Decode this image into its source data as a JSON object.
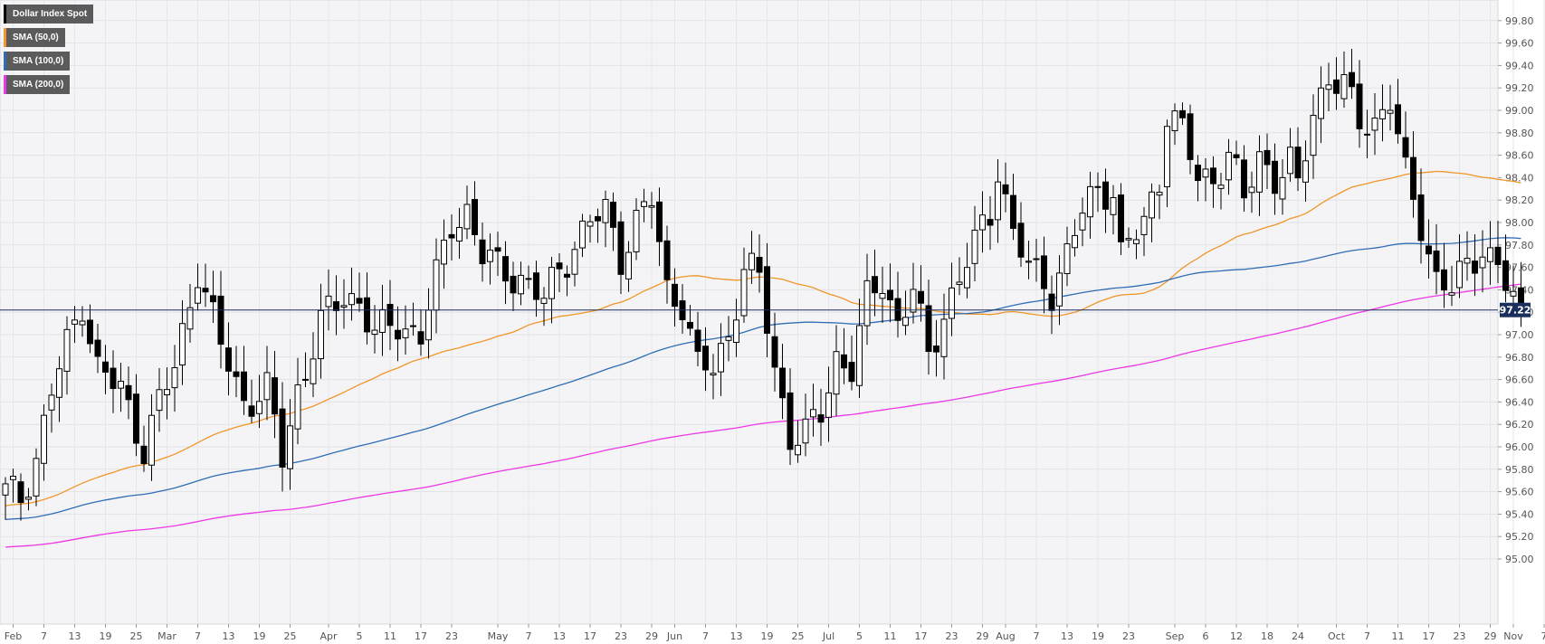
{
  "legend": [
    {
      "label": "Dollar Index Spot",
      "color": "#000000"
    },
    {
      "label": "SMA (50,0)",
      "color": "#f0962a"
    },
    {
      "label": "SMA (100,0)",
      "color": "#2f6db5"
    },
    {
      "label": "SMA (200,0)",
      "color": "#ec38e6"
    }
  ],
  "chart_data": {
    "type": "candlestick",
    "title": "",
    "ylim": [
      94.95,
      99.9
    ],
    "grid": true,
    "legend_position": "top-left",
    "y_ticks": [
      "95.00",
      "95.20",
      "95.40",
      "95.60",
      "95.80",
      "96.00",
      "96.20",
      "96.40",
      "96.60",
      "96.80",
      "97.00",
      "97.20",
      "97.40",
      "97.60",
      "97.80",
      "98.00",
      "98.20",
      "98.40",
      "98.60",
      "98.80",
      "99.00",
      "99.20",
      "99.40",
      "99.60",
      "99.80"
    ],
    "x_ticks": [
      {
        "label": "Feb",
        "index": 1
      },
      {
        "label": "7",
        "index": 5
      },
      {
        "label": "13",
        "index": 9
      },
      {
        "label": "19",
        "index": 13
      },
      {
        "label": "25",
        "index": 17
      },
      {
        "label": "Mar",
        "index": 21
      },
      {
        "label": "7",
        "index": 25
      },
      {
        "label": "13",
        "index": 29
      },
      {
        "label": "19",
        "index": 33
      },
      {
        "label": "25",
        "index": 37
      },
      {
        "label": "Apr",
        "index": 42
      },
      {
        "label": "5",
        "index": 46
      },
      {
        "label": "11",
        "index": 50
      },
      {
        "label": "17",
        "index": 54
      },
      {
        "label": "23",
        "index": 58
      },
      {
        "label": "May",
        "index": 64
      },
      {
        "label": "7",
        "index": 68
      },
      {
        "label": "13",
        "index": 72
      },
      {
        "label": "17",
        "index": 76
      },
      {
        "label": "23",
        "index": 80
      },
      {
        "label": "29",
        "index": 84
      },
      {
        "label": "Jun",
        "index": 87
      },
      {
        "label": "7",
        "index": 91
      },
      {
        "label": "13",
        "index": 95
      },
      {
        "label": "19",
        "index": 99
      },
      {
        "label": "25",
        "index": 103
      },
      {
        "label": "Jul",
        "index": 107
      },
      {
        "label": "5",
        "index": 111
      },
      {
        "label": "11",
        "index": 115
      },
      {
        "label": "17",
        "index": 119
      },
      {
        "label": "23",
        "index": 123
      },
      {
        "label": "29",
        "index": 127
      },
      {
        "label": "Aug",
        "index": 130
      },
      {
        "label": "7",
        "index": 134
      },
      {
        "label": "13",
        "index": 138
      },
      {
        "label": "19",
        "index": 142
      },
      {
        "label": "23",
        "index": 146
      },
      {
        "label": "Sep",
        "index": 152
      },
      {
        "label": "6",
        "index": 156
      },
      {
        "label": "12",
        "index": 160
      },
      {
        "label": "18",
        "index": 164
      },
      {
        "label": "24",
        "index": 168
      },
      {
        "label": "Oct",
        "index": 173
      },
      {
        "label": "7",
        "index": 177
      },
      {
        "label": "11",
        "index": 181
      },
      {
        "label": "17",
        "index": 185
      },
      {
        "label": "23",
        "index": 189
      },
      {
        "label": "29",
        "index": 193
      },
      {
        "label": "Nov",
        "index": 196
      },
      {
        "label": "7",
        "index": 200
      }
    ],
    "last_price": "97.22",
    "last_price_value": 97.22,
    "keyframes": [
      [
        0,
        95.6
      ],
      [
        2,
        95.55
      ],
      [
        4,
        95.9
      ],
      [
        6,
        96.5
      ],
      [
        8,
        96.9
      ],
      [
        10,
        97.3
      ],
      [
        12,
        96.7
      ],
      [
        15,
        96.5
      ],
      [
        18,
        96.0
      ],
      [
        20,
        96.4
      ],
      [
        22,
        96.7
      ],
      [
        25,
        97.6
      ],
      [
        28,
        96.9
      ],
      [
        31,
        96.4
      ],
      [
        34,
        96.5
      ],
      [
        36,
        95.9
      ],
      [
        38,
        96.5
      ],
      [
        41,
        97.1
      ],
      [
        44,
        97.35
      ],
      [
        46,
        97.3
      ],
      [
        48,
        97.0
      ],
      [
        51,
        97.1
      ],
      [
        54,
        97.0
      ],
      [
        56,
        97.5
      ],
      [
        58,
        98.0
      ],
      [
        60,
        98.1
      ],
      [
        62,
        97.7
      ],
      [
        64,
        97.6
      ],
      [
        67,
        97.5
      ],
      [
        70,
        97.3
      ],
      [
        72,
        97.6
      ],
      [
        74,
        97.8
      ],
      [
        76,
        98.0
      ],
      [
        78,
        98.1
      ],
      [
        80,
        97.7
      ],
      [
        82,
        98.0
      ],
      [
        84,
        98.2
      ],
      [
        86,
        97.4
      ],
      [
        88,
        97.3
      ],
      [
        90,
        96.7
      ],
      [
        92,
        96.7
      ],
      [
        94,
        97.0
      ],
      [
        96,
        97.6
      ],
      [
        98,
        97.5
      ],
      [
        100,
        96.7
      ],
      [
        102,
        96.1
      ],
      [
        104,
        96.1
      ],
      [
        106,
        96.3
      ],
      [
        108,
        96.8
      ],
      [
        110,
        96.7
      ],
      [
        112,
        97.3
      ],
      [
        114,
        97.5
      ],
      [
        116,
        97.1
      ],
      [
        118,
        97.4
      ],
      [
        120,
        96.8
      ],
      [
        122,
        97.2
      ],
      [
        124,
        97.5
      ],
      [
        126,
        97.8
      ],
      [
        128,
        98.1
      ],
      [
        129,
        98.5
      ],
      [
        131,
        97.9
      ],
      [
        133,
        97.6
      ],
      [
        136,
        97.4
      ],
      [
        138,
        97.7
      ],
      [
        140,
        98.1
      ],
      [
        142,
        98.3
      ],
      [
        144,
        98.3
      ],
      [
        145,
        97.7
      ],
      [
        148,
        98.0
      ],
      [
        150,
        98.4
      ],
      [
        151,
        99.0
      ],
      [
        153,
        98.8
      ],
      [
        155,
        98.4
      ],
      [
        157,
        98.4
      ],
      [
        159,
        98.6
      ],
      [
        161,
        98.2
      ],
      [
        163,
        98.6
      ],
      [
        165,
        98.4
      ],
      [
        167,
        98.5
      ],
      [
        168,
        98.3
      ],
      [
        170,
        99.0
      ],
      [
        172,
        99.3
      ],
      [
        174,
        99.2
      ],
      [
        176,
        98.9
      ],
      [
        178,
        98.9
      ],
      [
        180,
        99.1
      ],
      [
        182,
        98.4
      ],
      [
        184,
        98.0
      ],
      [
        186,
        97.5
      ],
      [
        188,
        97.4
      ],
      [
        190,
        97.6
      ],
      [
        192,
        97.8
      ],
      [
        194,
        97.6
      ],
      [
        196,
        97.3
      ],
      [
        197,
        97.22
      ]
    ]
  }
}
